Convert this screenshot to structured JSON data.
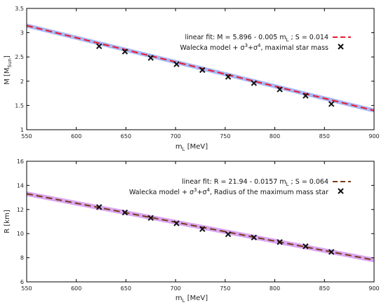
{
  "chart_data": [
    {
      "type": "scatter",
      "xlim": [
        550,
        900
      ],
      "ylim": [
        1,
        3.5
      ],
      "xticks": [
        "550",
        "600",
        "650",
        "700",
        "750",
        "800",
        "850",
        "900"
      ],
      "yticks": [
        "1",
        "1.5",
        "2",
        "2.5",
        "3",
        "3.5"
      ],
      "xlabel": {
        "main": "m",
        "sub": "L",
        "unit": " [MeV]"
      },
      "ylabel": {
        "main": "M [M",
        "sub": "Sun",
        "end": "]"
      },
      "grid": false,
      "legend_position": "top-right",
      "fit": {
        "label_pre": "linear fit: M = 5.896 - 0.005 m",
        "label_sub": "L",
        "label_post": " ; S = 0.014",
        "intercept": 5.896,
        "slope": -0.005,
        "uncertainty": 0.014,
        "line_color": "#e8192c",
        "band_color": "#a9b8f5"
      },
      "points_series": {
        "label_pre": "Walecka model + σ",
        "sup1": "3",
        "label_mid": "+σ",
        "sup2": "4",
        "label_post": ", maximal star mass",
        "marker_color": "#111111",
        "x": [
          623,
          649,
          675,
          701,
          727,
          753,
          779,
          805,
          831,
          857
        ],
        "y": [
          2.72,
          2.61,
          2.48,
          2.35,
          2.23,
          2.09,
          1.96,
          1.83,
          1.7,
          1.53
        ]
      }
    },
    {
      "type": "scatter",
      "xlim": [
        550,
        900
      ],
      "ylim": [
        6,
        16
      ],
      "xticks": [
        "550",
        "600",
        "650",
        "700",
        "750",
        "800",
        "850",
        "900"
      ],
      "yticks": [
        "6",
        "8",
        "10",
        "12",
        "14",
        "16"
      ],
      "xlabel": {
        "main": "m",
        "sub": "L",
        "unit": " [MeV]"
      },
      "ylabel": {
        "main": "R [km]",
        "sub": "",
        "end": ""
      },
      "grid": false,
      "legend_position": "top-right",
      "fit": {
        "label_pre": "linear fit: R = 21.94 - 0.0157 m",
        "label_sub": "L",
        "label_post": " ; S = 0.064",
        "intercept": 21.94,
        "slope": -0.0157,
        "uncertainty": 0.064,
        "line_color": "#7a3b12",
        "band_color": "#d9a6f2"
      },
      "points_series": {
        "label_pre": "Walecka model + σ",
        "sup1": "3",
        "label_mid": "+σ",
        "sup2": "4",
        "label_post": ", Radius of the maximum mass star",
        "marker_color": "#111111",
        "x": [
          623,
          649,
          675,
          701,
          727,
          753,
          779,
          805,
          831,
          857
        ],
        "y": [
          12.2,
          11.75,
          11.3,
          10.85,
          10.38,
          9.95,
          9.68,
          9.3,
          8.95,
          8.48
        ]
      }
    }
  ]
}
